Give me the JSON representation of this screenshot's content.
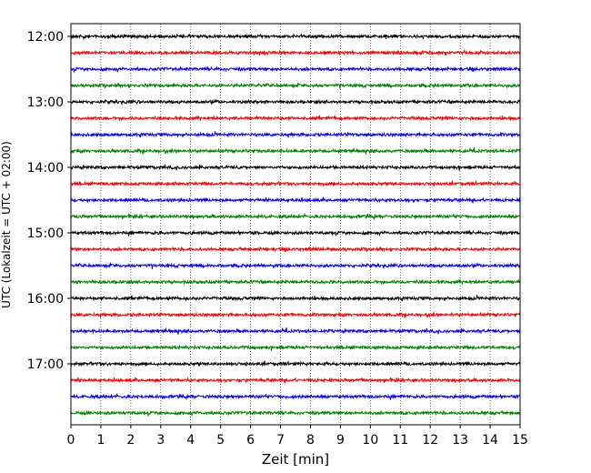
{
  "chart_data": {
    "type": "line",
    "title": "",
    "xlabel": "Zeit  [min]",
    "ylabel": "UTC (Lokalzeit = UTC + 02:00)",
    "xlim": [
      0,
      15
    ],
    "x_ticks": [
      "0",
      "1",
      "2",
      "3",
      "4",
      "5",
      "6",
      "7",
      "8",
      "9",
      "10",
      "11",
      "12",
      "13",
      "14",
      "15"
    ],
    "y_ticks": [
      {
        "label": "12:00",
        "trace_index": 0
      },
      {
        "label": "13:00",
        "trace_index": 4
      },
      {
        "label": "14:00",
        "trace_index": 8
      },
      {
        "label": "15:00",
        "trace_index": 12
      },
      {
        "label": "16:00",
        "trace_index": 16
      },
      {
        "label": "17:00",
        "trace_index": 20
      }
    ],
    "grid": "vertical dotted at each minute",
    "trace_interval_minutes": 15,
    "trace_start": "12:00",
    "trace_count": 24,
    "trace_colors": [
      "#000000",
      "#ff0000",
      "#0000ff",
      "#008000"
    ],
    "traces": [
      {
        "start": "12:00"
      },
      {
        "start": "12:15"
      },
      {
        "start": "12:30"
      },
      {
        "start": "12:45"
      },
      {
        "start": "13:00"
      },
      {
        "start": "13:15"
      },
      {
        "start": "13:30"
      },
      {
        "start": "13:45"
      },
      {
        "start": "14:00"
      },
      {
        "start": "14:15"
      },
      {
        "start": "14:30"
      },
      {
        "start": "14:45"
      },
      {
        "start": "15:00"
      },
      {
        "start": "15:15"
      },
      {
        "start": "15:30"
      },
      {
        "start": "15:45"
      },
      {
        "start": "16:00"
      },
      {
        "start": "16:15"
      },
      {
        "start": "16:30"
      },
      {
        "start": "16:45"
      },
      {
        "start": "17:00"
      },
      {
        "start": "17:15"
      },
      {
        "start": "17:30"
      },
      {
        "start": "17:45"
      }
    ]
  }
}
